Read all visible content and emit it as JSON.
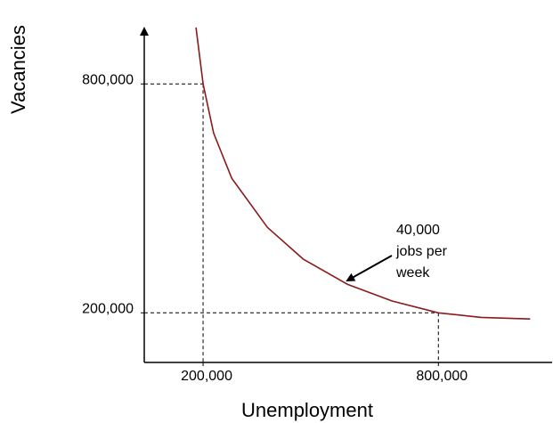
{
  "chart_data": {
    "type": "line",
    "x_label": "Unemployment",
    "y_label": "Vacancies",
    "xlim": [
      50000,
      1090000
    ],
    "ylim": [
      70000,
      950000
    ],
    "xticks": [
      {
        "value": 200000,
        "label": "200,000"
      },
      {
        "value": 800000,
        "label": "800,000"
      }
    ],
    "yticks": [
      {
        "value": 200000,
        "label": "200,000"
      },
      {
        "value": 800000,
        "label": "800,000"
      }
    ],
    "reference_points": {
      "x": [
        200000,
        800000
      ],
      "y": [
        800000,
        200000
      ]
    },
    "series": [
      {
        "color": "#8b1a1a",
        "x": [
          182000,
          200000,
          227000,
          273000,
          364000,
          455000,
          568000,
          682000,
          800000,
          909000,
          1034000
        ],
        "values": [
          948000,
          800000,
          671000,
          553000,
          424000,
          341000,
          275000,
          231000,
          200000,
          188000,
          184000
        ]
      }
    ],
    "annotation": [
      "40,000",
      "jobs per",
      "week"
    ]
  }
}
